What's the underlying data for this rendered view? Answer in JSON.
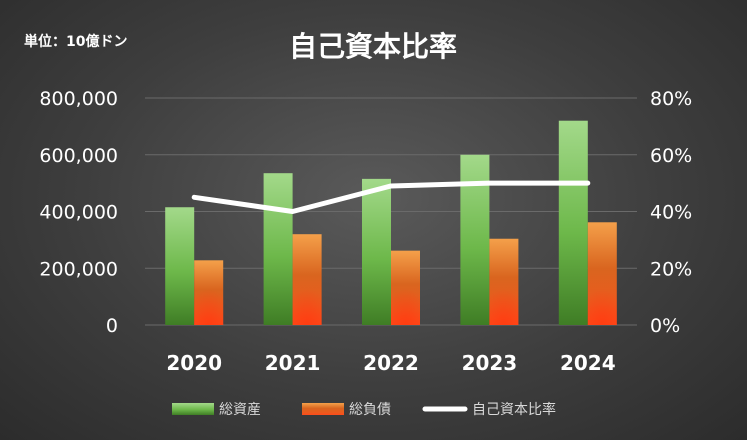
{
  "unit_label": "単位：10億ドン",
  "chart_data": {
    "type": "bar",
    "title": "自己資本比率",
    "categories": [
      "2020",
      "2021",
      "2022",
      "2023",
      "2024"
    ],
    "series": [
      {
        "name": "総資産",
        "type": "bar",
        "axis": "left",
        "color": "#70ad47",
        "values": [
          415000,
          535000,
          515000,
          600000,
          720000
        ]
      },
      {
        "name": "総負債",
        "type": "bar",
        "axis": "left",
        "color": "#ed7d31",
        "values": [
          228000,
          320000,
          262000,
          304000,
          362000
        ]
      },
      {
        "name": "自己資本比率",
        "type": "line",
        "axis": "right",
        "color": "#ffffff",
        "values": [
          0.45,
          0.4,
          0.49,
          0.5,
          0.5
        ]
      }
    ],
    "y_left": {
      "min": 0,
      "max": 800000,
      "ticks": [
        "0",
        "200,000",
        "400,000",
        "600,000",
        "800,000"
      ]
    },
    "y_right": {
      "min": 0,
      "max": 0.8,
      "ticks": [
        "0%",
        "20%",
        "40%",
        "60%",
        "80%"
      ]
    },
    "grid": true,
    "legend_position": "bottom"
  }
}
